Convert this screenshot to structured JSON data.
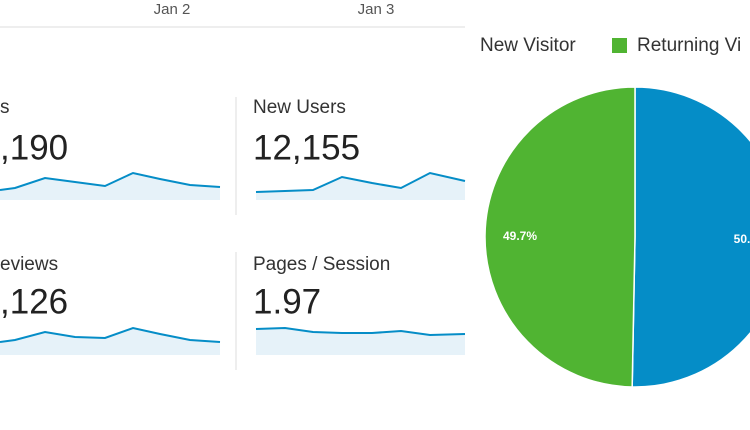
{
  "axis_labels": [
    "Jan 2",
    "Jan 3"
  ],
  "metrics": [
    {
      "label": "s",
      "value": ",190"
    },
    {
      "label": "New Users",
      "value": "12,155"
    },
    {
      "label": "eviews",
      "value": ",126"
    },
    {
      "label": "Pages / Session",
      "value": "1.97"
    }
  ],
  "chart_data": {
    "type": "pie",
    "categories": [
      "New Visitor",
      "Returning Vi"
    ],
    "values": [
      50.3,
      49.7
    ],
    "value_labels": [
      "50.",
      "49.7%"
    ],
    "colors": [
      "#058dc7",
      "#50b432"
    ]
  }
}
